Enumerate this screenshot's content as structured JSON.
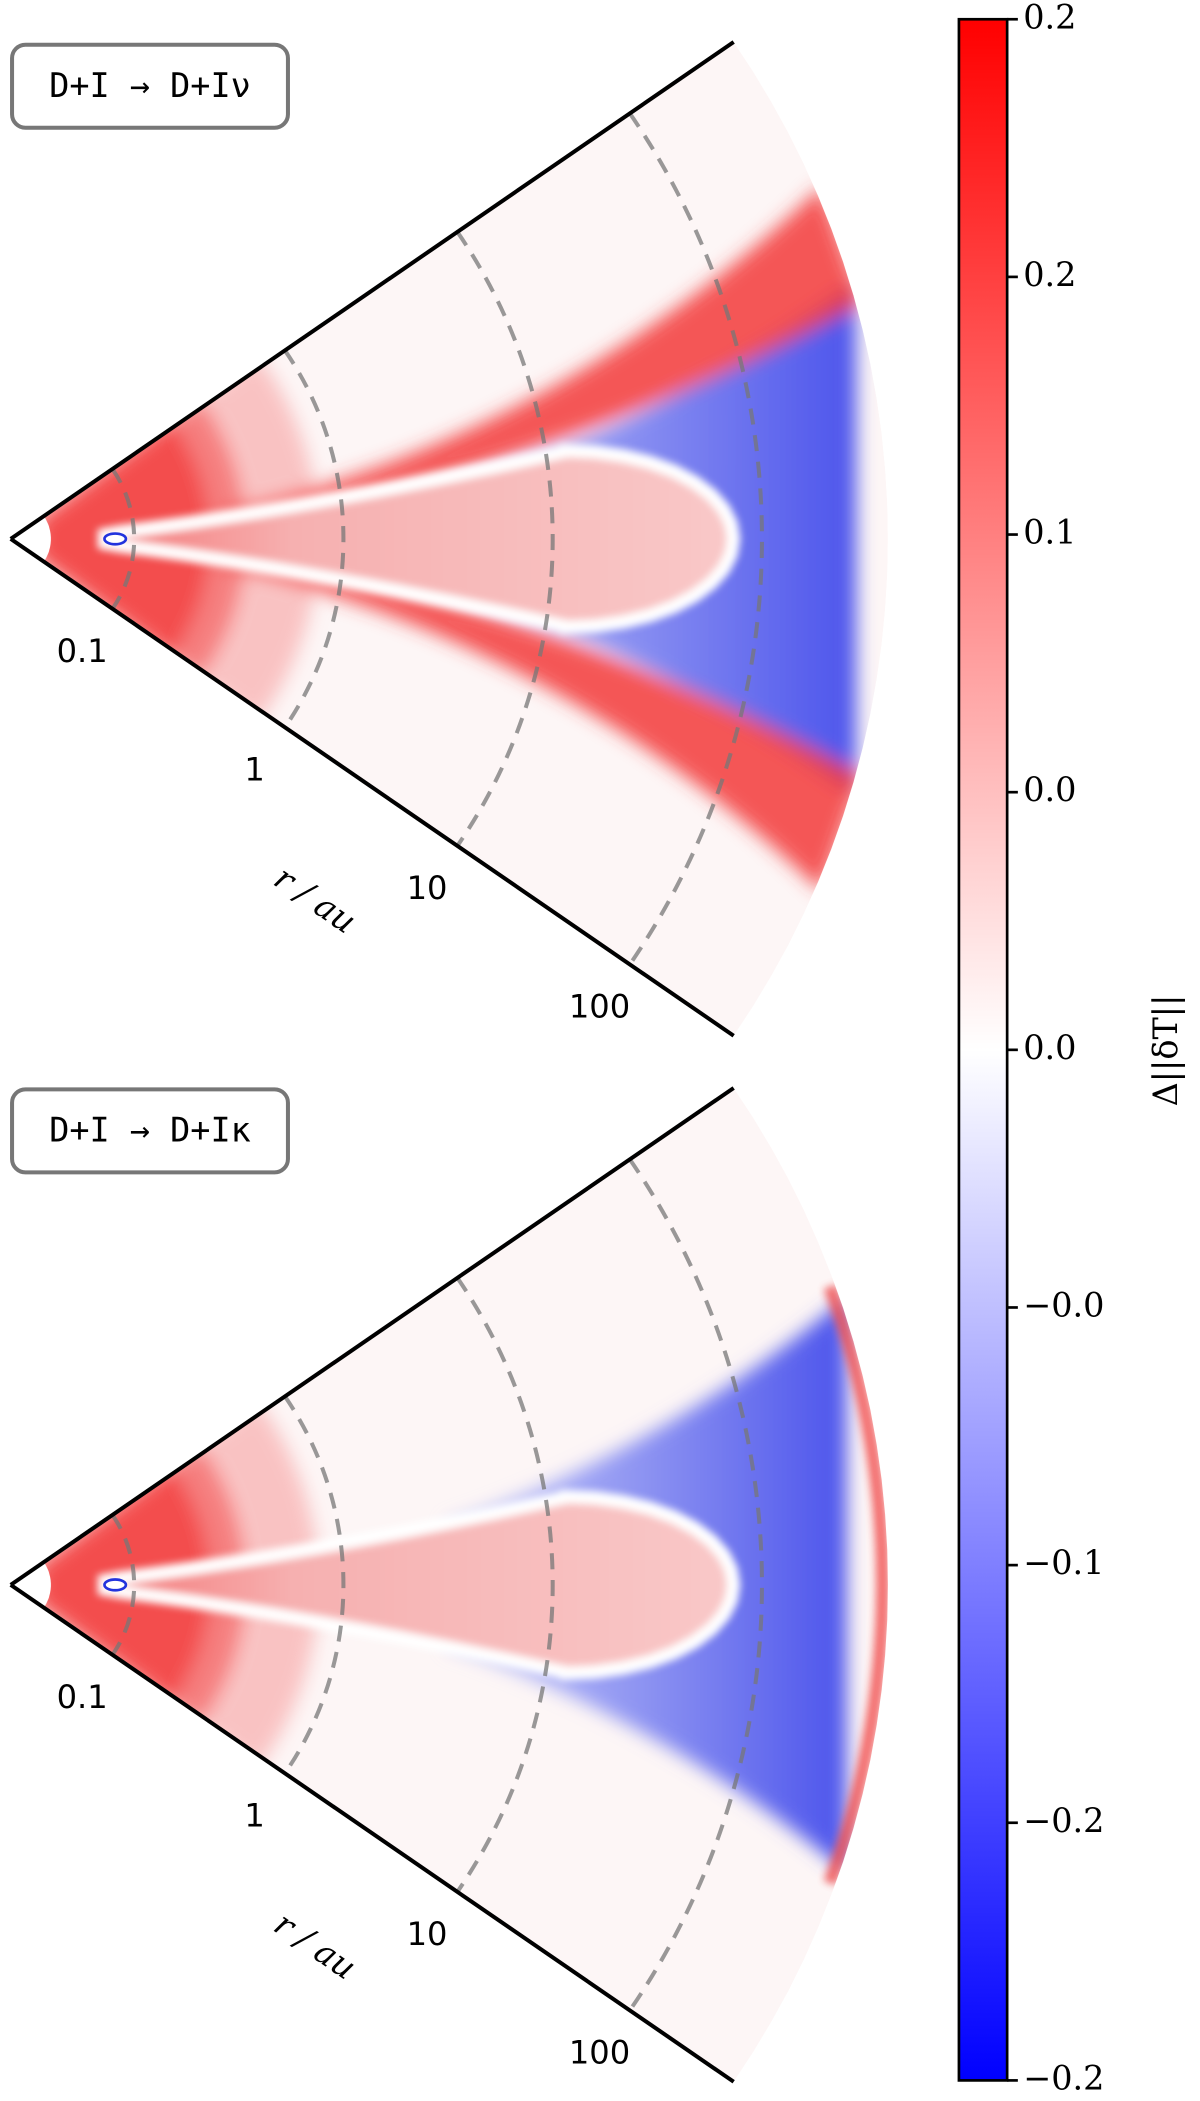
{
  "chart_data": {
    "type": "wedge-map",
    "panels": [
      {
        "label": "D+I → D+Iν"
      },
      {
        "label": "D+I → D+Iκ"
      }
    ],
    "r_label": "r / au",
    "rscale": "log",
    "rlim": [
      0.04,
      400
    ],
    "rticks": [
      0.1,
      1,
      10,
      100
    ],
    "colorbar": {
      "label": "Δ||δT||",
      "lim": [
        -0.2,
        0.2
      ],
      "colors": [
        "#0000ff",
        "#ffffff",
        "#ff0000"
      ],
      "ticks": [
        0.2,
        {
          "value": 0.15,
          "label": "0.2"
        },
        0.1,
        {
          "value": 0.05,
          "label": "0.0"
        },
        {
          "value": 0,
          "label": "0.0"
        },
        {
          "value": -0.05,
          "label": "−0.0"
        },
        {
          "value": -0.1,
          "label": "−0.1"
        },
        {
          "value": -0.15,
          "label": "−0.2"
        },
        {
          "value": -0.2,
          "label": "−0.2"
        }
      ]
    }
  }
}
